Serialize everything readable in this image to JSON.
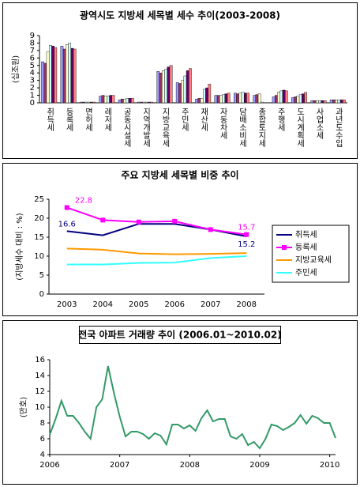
{
  "chart_data": [
    {
      "type": "bar",
      "title": "광역시도 지방세 세목별 세수 추이(2003-2008)",
      "ylabel": "(십조원)",
      "categories": [
        "취득세",
        "등록세",
        "면허세",
        "레저세",
        "공동시설세",
        "지역개발세",
        "지방교육세",
        "주민세",
        "재산세",
        "자동차세",
        "담배소비세",
        "종합토지세",
        "주행세",
        "도시계획세",
        "사업소세",
        "과년도수입"
      ],
      "series": [
        {
          "color": "#9999ff",
          "values": [
            5.5,
            7.6,
            0.1,
            0.9,
            0.4,
            0.1,
            4.2,
            2.7,
            0.5,
            1.0,
            1.3,
            1.0,
            0.8,
            0.7,
            0.3,
            0.4
          ]
        },
        {
          "color": "#993366",
          "values": [
            5.3,
            7.2,
            0.1,
            1.0,
            0.5,
            0.1,
            4.0,
            2.6,
            0.6,
            1.0,
            1.2,
            1.1,
            1.0,
            0.8,
            0.3,
            0.4
          ]
        },
        {
          "color": "#ffffcc",
          "values": [
            6.8,
            7.8,
            0.1,
            0.9,
            0.5,
            0.1,
            4.3,
            3.0,
            0.6,
            1.0,
            1.3,
            1.2,
            1.4,
            0.9,
            0.3,
            0.4
          ]
        },
        {
          "color": "#ccffff",
          "values": [
            7.7,
            8.0,
            0.1,
            0.9,
            0.6,
            0.1,
            4.5,
            3.6,
            1.8,
            1.1,
            1.4,
            0.1,
            1.6,
            1.1,
            0.3,
            0.4
          ]
        },
        {
          "color": "#660066",
          "values": [
            7.6,
            7.3,
            0.1,
            1.0,
            0.6,
            0.1,
            4.8,
            4.3,
            2.0,
            1.2,
            1.3,
            0.0,
            1.7,
            1.2,
            0.3,
            0.4
          ]
        },
        {
          "color": "#ff8080",
          "values": [
            7.4,
            7.2,
            0.1,
            1.0,
            0.6,
            0.1,
            5.0,
            4.6,
            2.5,
            1.3,
            1.3,
            0.0,
            1.6,
            1.4,
            0.3,
            0.4
          ]
        }
      ],
      "ylim": [
        0,
        9
      ],
      "yticks": [
        0,
        1,
        2,
        3,
        4,
        5,
        6,
        7,
        8,
        9
      ]
    },
    {
      "type": "line",
      "title": "주요 지방세 세목별 비중 추이",
      "ylabel": "(지방세수 대비 : %)",
      "categories": [
        "2003",
        "2004",
        "2005",
        "2006",
        "2007",
        "2008"
      ],
      "series": [
        {
          "name": "취득세",
          "color": "#000080",
          "values": [
            16.6,
            15.5,
            18.5,
            18.5,
            17.0,
            15.2
          ],
          "value_labels": [
            "16.6",
            null,
            null,
            null,
            null,
            "15.2"
          ]
        },
        {
          "name": "등록세",
          "color": "#ff00ff",
          "marker": "square",
          "values": [
            22.8,
            19.5,
            19.0,
            19.2,
            17.0,
            15.7
          ],
          "value_labels": [
            "22.8",
            null,
            null,
            null,
            null,
            "15.7"
          ]
        },
        {
          "name": "지방교육세",
          "color": "#ff9900",
          "values": [
            12.0,
            11.7,
            10.7,
            10.5,
            10.6,
            10.8
          ]
        },
        {
          "name": "주민세",
          "color": "#33ffff",
          "values": [
            7.8,
            7.8,
            8.2,
            8.3,
            9.5,
            10.0
          ]
        }
      ],
      "ylim": [
        0,
        25
      ],
      "yticks": [
        0,
        5,
        10,
        15,
        20,
        25
      ],
      "legend": "right"
    },
    {
      "type": "line",
      "title": "전국 아파트 거래량 추이 (2006.01~2010.02)",
      "ylabel": "(만호)",
      "x": [
        2006,
        2006.083,
        2006.167,
        2006.25,
        2006.333,
        2006.417,
        2006.5,
        2006.583,
        2006.667,
        2006.75,
        2006.833,
        2006.917,
        2007,
        2007.083,
        2007.167,
        2007.25,
        2007.333,
        2007.417,
        2007.5,
        2007.583,
        2007.667,
        2007.75,
        2007.833,
        2007.917,
        2008,
        2008.083,
        2008.167,
        2008.25,
        2008.333,
        2008.417,
        2008.5,
        2008.583,
        2008.667,
        2008.75,
        2008.833,
        2008.917,
        2009,
        2009.083,
        2009.167,
        2009.25,
        2009.333,
        2009.417,
        2009.5,
        2009.583,
        2009.667,
        2009.75,
        2009.833,
        2009.917,
        2010,
        2010.083
      ],
      "series": [
        {
          "color": "#339966",
          "values": [
            6.5,
            8.5,
            10.8,
            8.9,
            8.9,
            8.0,
            6.9,
            6.0,
            10.0,
            11.0,
            15.2,
            11.8,
            8.8,
            6.3,
            6.9,
            6.9,
            6.6,
            6.0,
            6.7,
            6.4,
            5.3,
            7.8,
            7.8,
            7.3,
            7.7,
            7.0,
            8.6,
            9.6,
            8.2,
            8.5,
            8.5,
            6.3,
            6.0,
            6.6,
            5.2,
            5.6,
            4.8,
            6.0,
            7.8,
            7.6,
            7.1,
            7.5,
            8.0,
            9.0,
            7.9,
            8.9,
            8.6,
            8.0,
            8.0,
            6.1
          ]
        }
      ],
      "xlim": [
        2006,
        2010.083
      ],
      "xticks": [
        2006,
        2007,
        2008,
        2009,
        2010
      ],
      "ylim": [
        4,
        16
      ],
      "yticks": [
        4,
        6,
        8,
        10,
        12,
        14,
        16
      ]
    }
  ]
}
